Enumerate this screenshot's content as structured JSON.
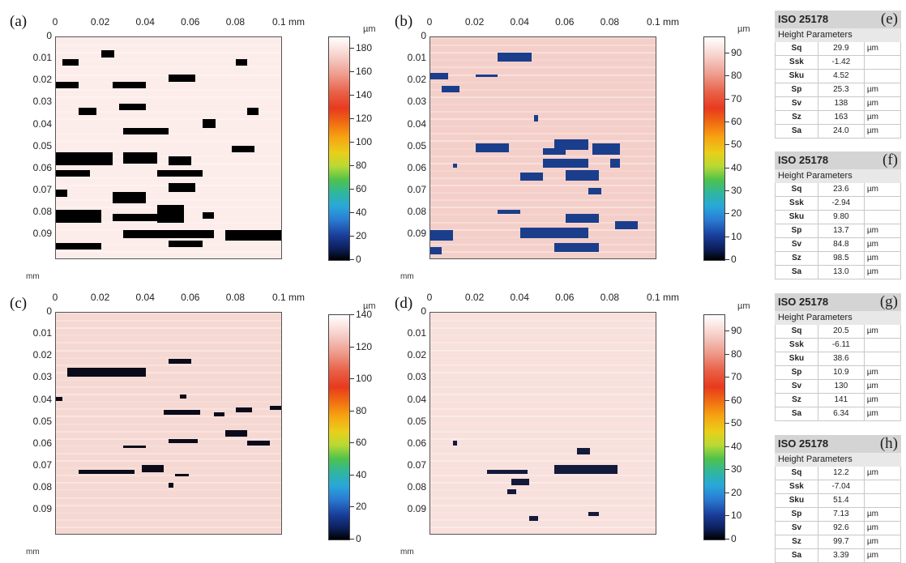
{
  "panels": [
    {
      "label": "(a)",
      "cbar_ticks": [
        "180",
        "160",
        "140",
        "120",
        "100",
        "80",
        "60",
        "40",
        "20",
        "0"
      ],
      "cbar_max": 190
    },
    {
      "label": "(b)",
      "cbar_ticks": [
        "90",
        "80",
        "70",
        "60",
        "50",
        "40",
        "30",
        "20",
        "10",
        "0"
      ],
      "cbar_max": 97
    },
    {
      "label": "(c)",
      "cbar_ticks": [
        "140",
        "120",
        "100",
        "80",
        "60",
        "40",
        "20",
        "0"
      ],
      "cbar_max": 140
    },
    {
      "label": "(d)",
      "cbar_ticks": [
        "90",
        "80",
        "70",
        "60",
        "50",
        "40",
        "30",
        "20",
        "10",
        "0"
      ],
      "cbar_max": 97
    }
  ],
  "x_ticks": [
    "0",
    "0.02",
    "0.04",
    "0.06",
    "0.08",
    "0.1 mm"
  ],
  "y_ticks": [
    "0",
    "0.01",
    "0.02",
    "0.03",
    "0.04",
    "0.05",
    "0.06",
    "0.07",
    "0.08",
    "0.09"
  ],
  "y_unit": "mm",
  "cbar_unit": "µm",
  "tables": [
    {
      "label": "(e)",
      "title": "ISO 25178",
      "subtitle": "Height Parameters",
      "rows": [
        [
          "Sq",
          "29.9",
          "µm"
        ],
        [
          "Ssk",
          "-1.42",
          ""
        ],
        [
          "Sku",
          "4.52",
          ""
        ],
        [
          "Sp",
          "25.3",
          "µm"
        ],
        [
          "Sv",
          "138",
          "µm"
        ],
        [
          "Sz",
          "163",
          "µm"
        ],
        [
          "Sa",
          "24.0",
          "µm"
        ]
      ]
    },
    {
      "label": "(f)",
      "title": "ISO 25178",
      "subtitle": "Height Parameters",
      "rows": [
        [
          "Sq",
          "23.6",
          "µm"
        ],
        [
          "Ssk",
          "-2.94",
          ""
        ],
        [
          "Sku",
          "9.80",
          ""
        ],
        [
          "Sp",
          "13.7",
          "µm"
        ],
        [
          "Sv",
          "84.8",
          "µm"
        ],
        [
          "Sz",
          "98.5",
          "µm"
        ],
        [
          "Sa",
          "13.0",
          "µm"
        ]
      ]
    },
    {
      "label": "(g)",
      "title": "ISO 25178",
      "subtitle": "Height Parameters",
      "rows": [
        [
          "Sq",
          "20.5",
          "µm"
        ],
        [
          "Ssk",
          "-6.11",
          ""
        ],
        [
          "Sku",
          "38.6",
          ""
        ],
        [
          "Sp",
          "10.9",
          "µm"
        ],
        [
          "Sv",
          "130",
          "µm"
        ],
        [
          "Sz",
          "141",
          "µm"
        ],
        [
          "Sa",
          "6.34",
          "µm"
        ]
      ]
    },
    {
      "label": "(h)",
      "title": "ISO 25178",
      "subtitle": "Height Parameters",
      "rows": [
        [
          "Sq",
          "12.2",
          "µm"
        ],
        [
          "Ssk",
          "-7.04",
          ""
        ],
        [
          "Sku",
          "51.4",
          ""
        ],
        [
          "Sp",
          "7.13",
          "µm"
        ],
        [
          "Sv",
          "92.6",
          "µm"
        ],
        [
          "Sz",
          "99.7",
          "µm"
        ],
        [
          "Sa",
          "3.39",
          "µm"
        ]
      ]
    }
  ],
  "colors": {
    "map_a": "#fcecea",
    "map_b": "#f4cfc9",
    "map_c": "#f6d8d3",
    "map_d": "#f8e0dc",
    "defect_a": "#000000",
    "defect_b": "#1a3e8c",
    "defect_c": "#0a0a1a",
    "defect_d": "#141a3a"
  }
}
